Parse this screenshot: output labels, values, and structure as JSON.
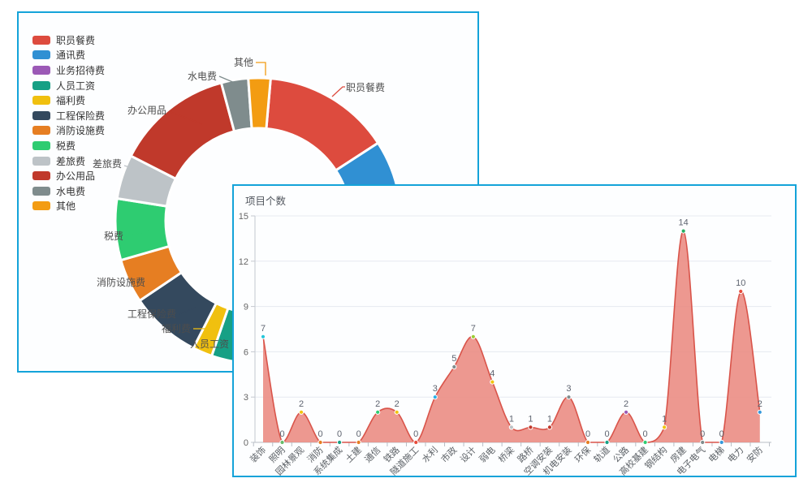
{
  "theme": {
    "panel_border": "#14a3d9",
    "background": "#ffffff"
  },
  "chart_data": [
    {
      "type": "pie",
      "subtype": "donut",
      "legend_position": "top-left",
      "segments": [
        {
          "label": "职员餐费",
          "color": "#dd4b3e",
          "angle_start": 5,
          "angle_end": 57,
          "label_visible": true
        },
        {
          "label": "通讯费",
          "color": "#3090d3",
          "angle_start": 57,
          "angle_end": 102,
          "label_visible": false
        },
        {
          "label": "业务招待费",
          "color": "#9b59b6",
          "angle_start": 102,
          "angle_end": 130,
          "label_visible": false
        },
        {
          "label": "人员工资",
          "color": "#16a085",
          "angle_start": 130,
          "angle_end": 199,
          "label_visible": true
        },
        {
          "label": "福利费",
          "color": "#f0c00f",
          "angle_start": 199,
          "angle_end": 207,
          "label_visible": true
        },
        {
          "label": "工程保险费",
          "color": "#34495e",
          "angle_start": 207,
          "angle_end": 236,
          "label_visible": true
        },
        {
          "label": "消防设施费",
          "color": "#e67e22",
          "angle_start": 236,
          "angle_end": 254,
          "label_visible": true
        },
        {
          "label": "税费",
          "color": "#2ecc71",
          "angle_start": 254,
          "angle_end": 279,
          "label_visible": true
        },
        {
          "label": "差旅费",
          "color": "#bdc3c7",
          "angle_start": 279,
          "angle_end": 297,
          "label_visible": true
        },
        {
          "label": "办公用品",
          "color": "#c0392b",
          "angle_start": 297,
          "angle_end": 345,
          "label_visible": true
        },
        {
          "label": "水电费",
          "color": "#7f8c8d",
          "angle_start": 345,
          "angle_end": 356,
          "label_visible": true
        },
        {
          "label": "其他",
          "color": "#f39c12",
          "angle_start": 356,
          "angle_end": 365,
          "label_visible": true
        }
      ]
    },
    {
      "type": "area",
      "title": "项目个数",
      "smooth": true,
      "grid": true,
      "ylim": [
        0,
        15
      ],
      "yticks": [
        0,
        3,
        6,
        9,
        12,
        15
      ],
      "line_color": "#d9544a",
      "fill_color": "#ea8a81",
      "categories": [
        "装饰",
        "照明",
        "园林景观",
        "消防",
        "系统集成",
        "土建",
        "通信",
        "铁路",
        "隧道施工",
        "水利",
        "市政",
        "设计",
        "弱电",
        "桥梁",
        "路桥",
        "空调安装",
        "机电安装",
        "环保",
        "轨道",
        "公路",
        "高校基建",
        "钢结构",
        "房建",
        "电子电气",
        "电梯",
        "电力",
        "安防"
      ],
      "values": [
        7,
        0,
        2,
        0,
        0,
        0,
        2,
        2,
        0,
        3,
        5,
        7,
        4,
        1,
        1,
        1,
        3,
        0,
        0,
        2,
        0,
        1,
        14,
        0,
        0,
        10,
        2
      ],
      "marker_colors": [
        "#26c6da",
        "#66bb6a",
        "#f1c40f",
        "#e67e22",
        "#16a085",
        "#e67e22",
        "#2ecc71",
        "#f1c40f",
        "#e74c3c",
        "#29b0e8",
        "#7f8c8d",
        "#9acd32",
        "#f1c40f",
        "#bdc3c7",
        "#c0392b",
        "#c0392b",
        "#7f8c8d",
        "#e67e22",
        "#16a085",
        "#9b59b6",
        "#2ecc71",
        "#f1c40f",
        "#27ae60",
        "#7f8c8d",
        "#3498db",
        "#e74c3c",
        "#3498db"
      ]
    }
  ]
}
